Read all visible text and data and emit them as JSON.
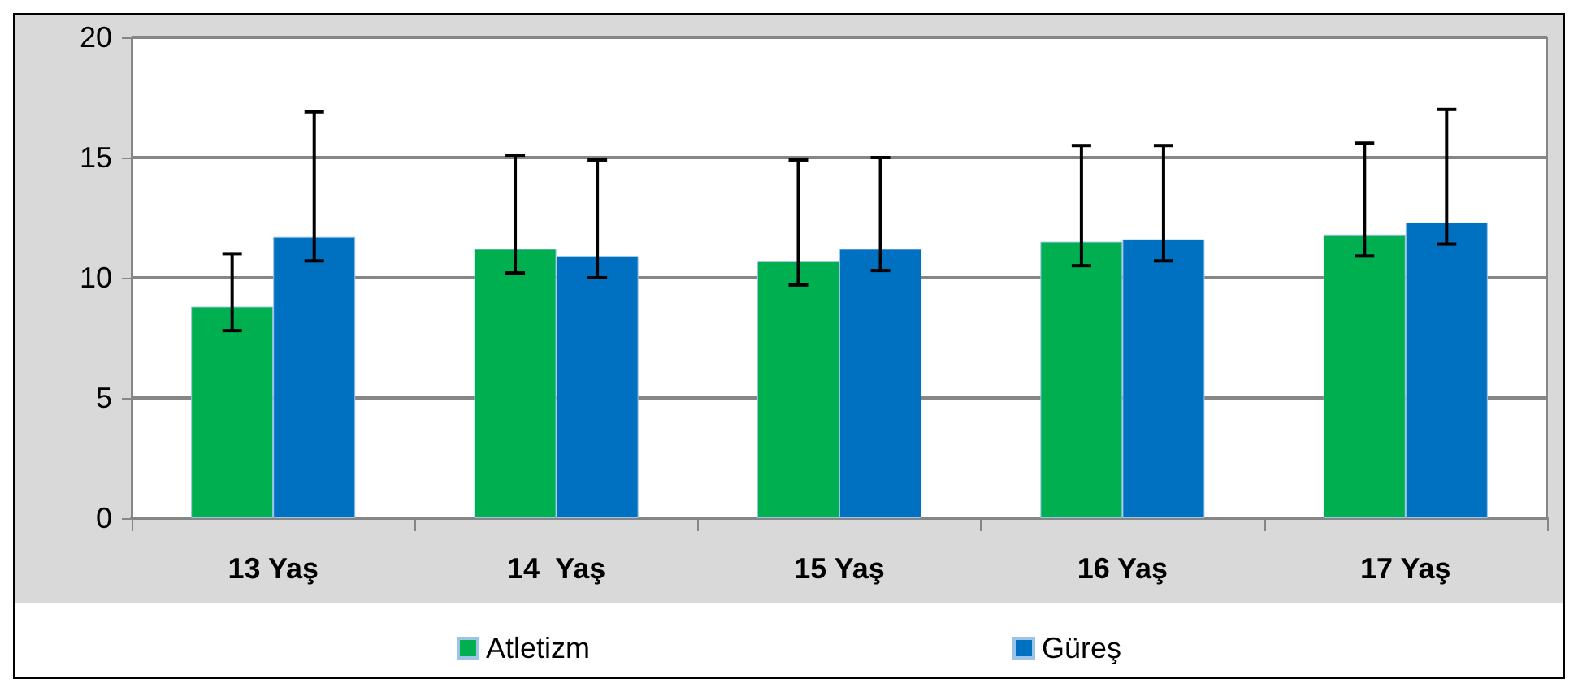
{
  "chart_data": {
    "type": "bar",
    "categories": [
      "13 Yaş",
      "14  Yaş",
      "15 Yaş",
      "16 Yaş",
      "17 Yaş"
    ],
    "series": [
      {
        "name": "Atletizm",
        "color": "#00b050",
        "values": [
          8.8,
          11.2,
          10.7,
          11.5,
          11.8
        ],
        "errors": [
          [
            7.8,
            11.0
          ],
          [
            10.2,
            15.1
          ],
          [
            9.7,
            14.9
          ],
          [
            10.5,
            15.5
          ],
          [
            10.9,
            15.6
          ]
        ]
      },
      {
        "name": "Güreş",
        "color": "#0070c0",
        "values": [
          11.7,
          10.9,
          11.2,
          11.6,
          12.3
        ],
        "errors": [
          [
            10.7,
            16.9
          ],
          [
            10.0,
            14.9
          ],
          [
            10.3,
            15.0
          ],
          [
            10.7,
            15.5
          ],
          [
            11.4,
            17.0
          ]
        ]
      }
    ],
    "ylim": [
      0,
      20
    ],
    "yticks": [
      0,
      5,
      10,
      15,
      20
    ],
    "grid": "y",
    "legend": "bottom"
  }
}
